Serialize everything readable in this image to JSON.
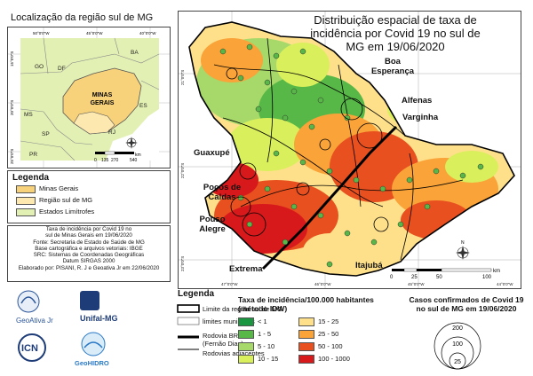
{
  "inset": {
    "title": "Localização da região sul de MG",
    "lon_labels": [
      "50°0'0\"W",
      "45°0'0\"W",
      "40°0'0\"W"
    ],
    "lat_labels": [
      "15°0'0\"S",
      "20°0'0\"S",
      "25°0'0\"S"
    ],
    "state_labels": [
      "BA",
      "GO",
      "DF",
      "MS",
      "SP",
      "RJ",
      "ES",
      "PR"
    ],
    "main_state_label_1": "MINAS",
    "main_state_label_2": "GERAIS",
    "scale_ticks": [
      "0",
      "135",
      "270",
      "540"
    ],
    "scale_unit": "km"
  },
  "legend": {
    "title": "Legenda",
    "items": [
      {
        "label": "Minas Gerais",
        "color": "#f8d27a"
      },
      {
        "label": "Região sul de MG",
        "color": "#fde9b0"
      },
      {
        "label": "Estados Limítrofes",
        "color": "#e3f0b4"
      }
    ]
  },
  "credits": [
    "Taxa de incidência por Covid 19 no",
    "sul de Minas Gerais em 19/06/2020",
    "Fonte: Secretaria de Estado de Saúde de MG",
    "Base cartográfica e arquivos vetoriais: IBGE",
    "SRC: Sistemas de Coordenadas Geográficas",
    "Datum SIRGAS 2000",
    "Elaborado por: PISANI, R. J e Geoativa Jr em 22/06/2020"
  ],
  "map": {
    "title": "Distribuição espacial de taxa de incidência por Covid 19  no sul de MG em 19/06/2020",
    "cities": [
      "Boa Esperança",
      "Alfenas",
      "Varginha",
      "Guaxupé",
      "Poços de Caldas",
      "Pouso Alegre",
      "Extrema",
      "Itajubá"
    ],
    "lon_labels": [
      "47°0'0\"W",
      "46°0'0\"W",
      "45°0'0\"W",
      "44°0'0\"W"
    ],
    "lat_labels": [
      "21°0'0\"S",
      "22°0'0\"S",
      "23°0'0\"S"
    ],
    "scale_ticks": [
      "0",
      "25",
      "50",
      "100"
    ],
    "scale_unit": "km",
    "north_label": "N"
  },
  "bottom_legend": {
    "title": "Legenda",
    "items": [
      {
        "label": "Limite da região sul de MG"
      },
      {
        "label": "limites municipais"
      },
      {
        "label": "Rodovia BR 381"
      },
      {
        "label": "(Fernão Dias)"
      },
      {
        "label": "Rodovias adjacentes"
      }
    ]
  },
  "incidence_legend": {
    "title": "Taxa de incidência/100.000 habitantes (método IDW)",
    "classes": [
      {
        "label": "< 1",
        "color": "#1a9641"
      },
      {
        "label": "1 - 5",
        "color": "#57b847"
      },
      {
        "label": "5 - 10",
        "color": "#a6d96a"
      },
      {
        "label": "10 - 15",
        "color": "#d9ef5b"
      },
      {
        "label": "15 - 25",
        "color": "#fee08b"
      },
      {
        "label": "25 - 50",
        "color": "#f9a338"
      },
      {
        "label": "50 - 100",
        "color": "#e8501f"
      },
      {
        "label": "100 - 1000",
        "color": "#d7191c"
      }
    ]
  },
  "cases_legend": {
    "title": "Casos confirmados de Covid 19 no sul de MG em 19/06/2020",
    "values": [
      "200",
      "100",
      "25"
    ]
  },
  "logos": [
    "GeoAtiva Jr",
    "Unifal-MG",
    "ICN",
    "GeoHIDRO"
  ]
}
